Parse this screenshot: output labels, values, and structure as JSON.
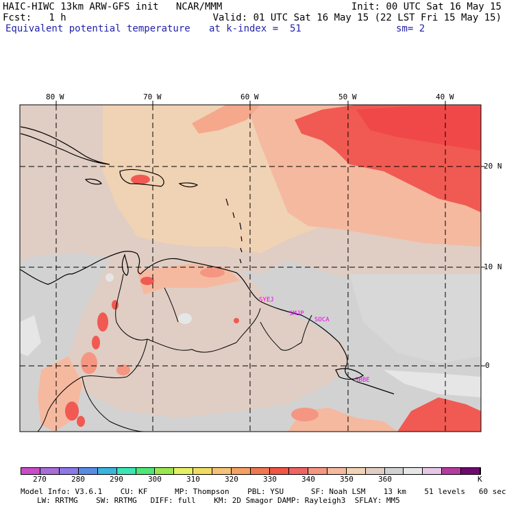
{
  "header": {
    "title_left": "HAIC-HIWC 13km ARW-GFS init   NCAR/MMM",
    "init": "Init: 00 UTC Sat 16 May 15",
    "fcst": "Fcst:   1 h",
    "valid": "Valid: 01 UTC Sat 16 May 15 (22 LST Fri 15 May 15)",
    "field": "Equivalent potential temperature",
    "level": "at k-index =  51",
    "smooth": "sm= 2"
  },
  "map": {
    "lon_labels": [
      "80 W",
      "70 W",
      "60 W",
      "50 W",
      "40 W"
    ],
    "lat_labels": [
      "20 N",
      "10 N",
      "0"
    ],
    "stations": [
      "SYEJ",
      "SMJP",
      "SOCA",
      "SBBE"
    ]
  },
  "colorbar": {
    "colors": [
      "#c84bc8",
      "#a96ed6",
      "#8c78e6",
      "#5a8ce6",
      "#3cb4dc",
      "#3ce6b4",
      "#50e678",
      "#9be650",
      "#e6f064",
      "#f0dc64",
      "#f5c378",
      "#f5a064",
      "#f07850",
      "#f05546",
      "#f06464",
      "#f59682",
      "#f5b9a0",
      "#f0d2b4",
      "#e0cdc3",
      "#d2d2d2",
      "#e6e6e6",
      "#e6c8e6",
      "#b43ca0",
      "#6e0a6e"
    ],
    "tick_labels": [
      "270",
      "280",
      "290",
      "300",
      "310",
      "320",
      "330",
      "340",
      "350",
      "360"
    ],
    "unit": "K"
  },
  "footer": {
    "line1": "Model Info: V3.6.1    CU: KF      MP: Thompson    PBL: YSU      SF: Noah LSM    13 km    51 levels   60 sec",
    "line2": "LW: RRTMG    SW: RRTMG   DIFF: full    KM: 2D Smagor DAMP: Rayleigh3  SFLAY: MM5"
  },
  "colors": {
    "header_blue": "#2222aa",
    "station_magenta": "#ee00ee",
    "ocean_gray": "#d2d2d2",
    "warm_pink": "#f5b9a0",
    "hot_red": "#f05a52"
  }
}
